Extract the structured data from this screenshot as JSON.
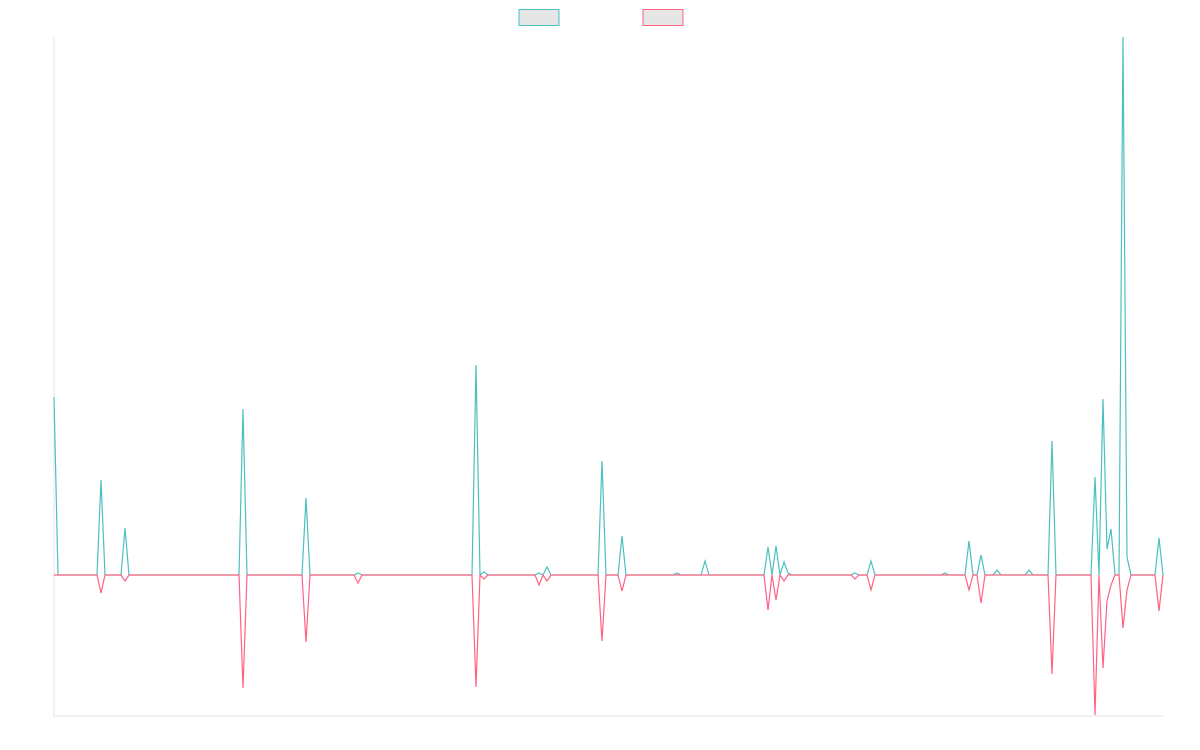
{
  "chart_data": {
    "type": "line",
    "legend": "top",
    "x": [
      0,
      4,
      43,
      47,
      51,
      67,
      71,
      75,
      185,
      189,
      193,
      248,
      252,
      256,
      300,
      304,
      308,
      418,
      422,
      426,
      430,
      434,
      481,
      485,
      489,
      493,
      497,
      544,
      548,
      552,
      564,
      568,
      572,
      619,
      623,
      627,
      647,
      651,
      655,
      710,
      714,
      718,
      722,
      726,
      730,
      734,
      738,
      797,
      801,
      805,
      813,
      817,
      821,
      887,
      891,
      895,
      911,
      915,
      919,
      923,
      927,
      931,
      939,
      943,
      947,
      971,
      975,
      979,
      994,
      998,
      1002,
      1037,
      1041,
      1045,
      1049,
      1053,
      1057,
      1061,
      1065,
      1069,
      1073,
      1077,
      1101,
      1105,
      1109
    ],
    "xlim": [
      0,
      1109
    ],
    "ylim": [
      -1.4,
      5.38
    ],
    "series": [
      {
        "color": "#4bc0c0",
        "values": [
          1.78,
          0,
          0,
          0.95,
          0,
          0,
          0.47,
          0,
          0,
          1.66,
          0,
          0,
          0.77,
          0,
          0,
          0.02,
          0,
          0,
          2.1,
          0,
          0.03,
          0,
          0,
          0.02,
          0,
          0.08,
          0,
          0,
          1.14,
          0,
          0,
          0.39,
          0,
          0,
          0.02,
          0,
          0,
          0.14,
          0,
          0,
          0.28,
          0,
          0.29,
          0,
          0.13,
          0.02,
          0,
          0,
          0.02,
          0,
          0,
          0.14,
          0,
          0,
          0.02,
          0,
          0,
          0.34,
          0,
          0,
          0.2,
          0,
          0,
          0.05,
          0,
          0,
          0.05,
          0,
          0,
          1.34,
          0,
          0,
          0.98,
          0,
          1.76,
          0.26,
          0.46,
          0,
          0,
          5.38,
          0.18,
          0,
          0,
          0.37,
          0
        ]
      },
      {
        "color": "#ff6384",
        "values": [
          0,
          0,
          0,
          -0.18,
          0,
          0,
          -0.06,
          0,
          0,
          -1.13,
          0,
          0,
          -0.67,
          0,
          0,
          -0.08,
          0,
          0,
          -1.12,
          0,
          -0.04,
          0,
          0,
          -0.1,
          0,
          -0.06,
          0,
          0,
          -0.66,
          0,
          0,
          -0.16,
          0,
          0,
          0,
          0,
          0,
          0,
          0,
          0,
          -0.35,
          0,
          -0.25,
          0,
          -0.06,
          0,
          0,
          0,
          -0.04,
          0,
          0,
          -0.15,
          0,
          0,
          0,
          0,
          0,
          -0.15,
          0,
          0,
          -0.28,
          0,
          0,
          0,
          0,
          0,
          0,
          0,
          0,
          -0.99,
          0,
          0,
          -1.4,
          0,
          -0.93,
          -0.26,
          -0.1,
          0,
          0,
          -0.53,
          -0.15,
          0,
          0,
          -0.36,
          0
        ]
      }
    ]
  }
}
